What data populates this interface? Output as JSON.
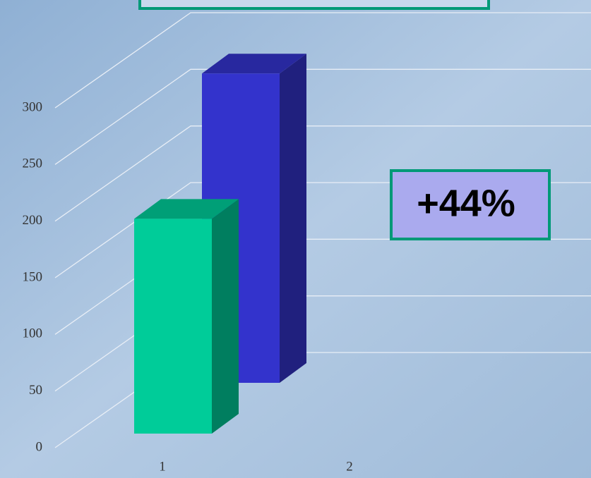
{
  "chart_data": {
    "type": "bar3d",
    "categories": [
      "1",
      "2"
    ],
    "series": [
      {
        "color": "#00cc99",
        "values": [
          200,
          null
        ]
      },
      {
        "color": "#3333cc",
        "values": [
          288,
          null
        ]
      }
    ],
    "ylim": [
      0,
      300
    ],
    "yticks": [
      0,
      50,
      100,
      150,
      200,
      250,
      300
    ],
    "grid": true,
    "annotation": "+44%"
  }
}
